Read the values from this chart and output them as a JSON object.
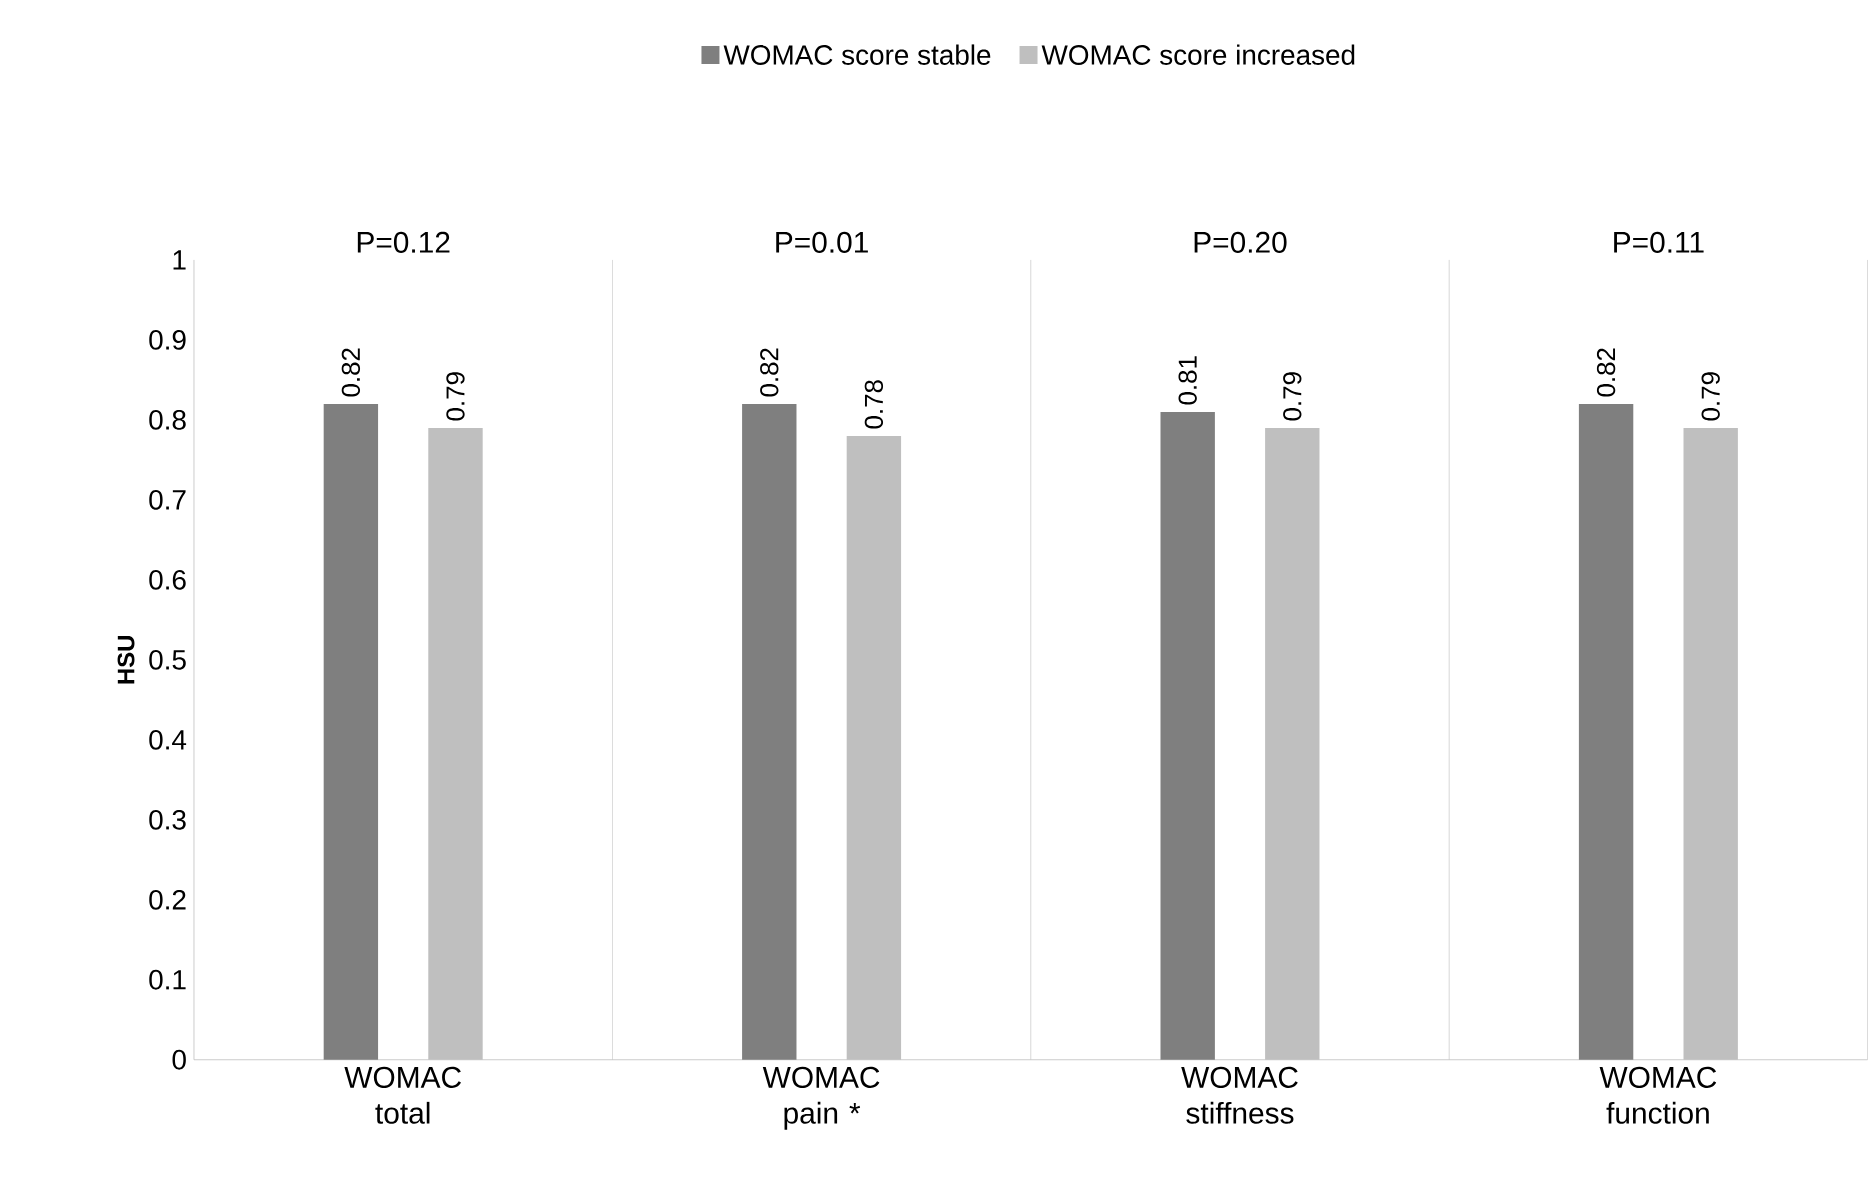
{
  "chart_data": {
    "type": "bar",
    "ylabel": "HSU",
    "categories": [
      "WOMAC total",
      "WOMAC pain *",
      "WOMAC stiffness",
      "WOMAC function"
    ],
    "series": [
      {
        "name": "WOMAC score stable",
        "color": "#7f7f7f",
        "values": [
          0.82,
          0.82,
          0.81,
          0.82
        ]
      },
      {
        "name": "WOMAC score increased",
        "color": "#bfbfbf",
        "values": [
          0.79,
          0.78,
          0.79,
          0.79
        ]
      }
    ],
    "ylim": [
      0,
      1
    ],
    "yticks": [
      0,
      0.1,
      0.2,
      0.3,
      0.4,
      0.5,
      0.6,
      0.7,
      0.8,
      0.9,
      1
    ],
    "data_labels": true,
    "legend": "top",
    "grid": "x",
    "annotations": [
      "P=0.12",
      "P=0.01",
      "P=0.20",
      "P=0.11"
    ]
  }
}
